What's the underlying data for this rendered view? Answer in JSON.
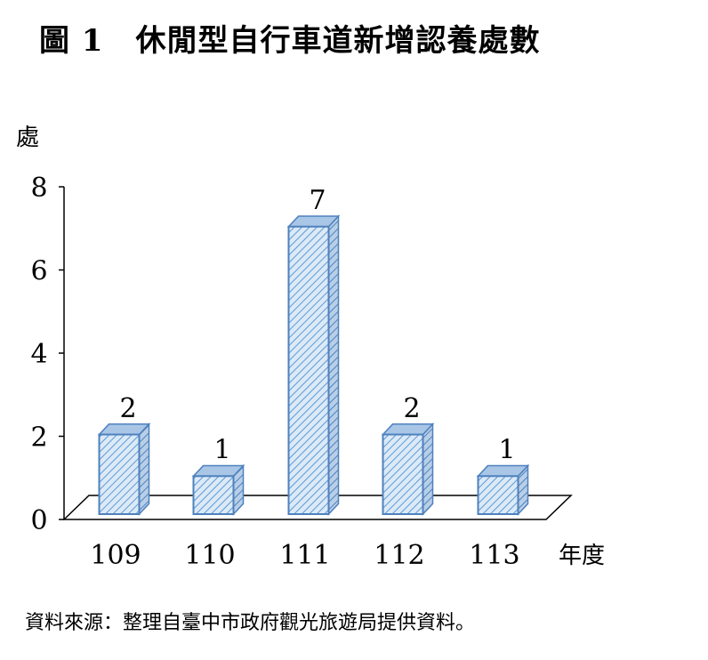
{
  "figure": {
    "number": "圖 1",
    "title": "休閒型自行車道新增認養處數",
    "source": "資料來源：整理自臺中市政府觀光旅遊局提供資料。"
  },
  "colors": {
    "bar_fill": "#dce9f7",
    "bar_hatch": "#5b9bd5",
    "bar_edge": "#4f81bd",
    "axis": "#000000"
  },
  "chart_data": {
    "type": "bar",
    "title": "休閒型自行車道新增認養處數",
    "xlabel": "年度",
    "ylabel": "處",
    "categories": [
      "109",
      "110",
      "111",
      "112",
      "113"
    ],
    "values": [
      2,
      1,
      7,
      2,
      1
    ],
    "data_labels": [
      "2",
      "1",
      "7",
      "2",
      "1"
    ],
    "ylim": [
      0,
      8
    ],
    "yticks": [
      "0",
      "2",
      "4",
      "6",
      "8"
    ],
    "grid": false,
    "legend": "none",
    "style": "3d-hatched"
  }
}
